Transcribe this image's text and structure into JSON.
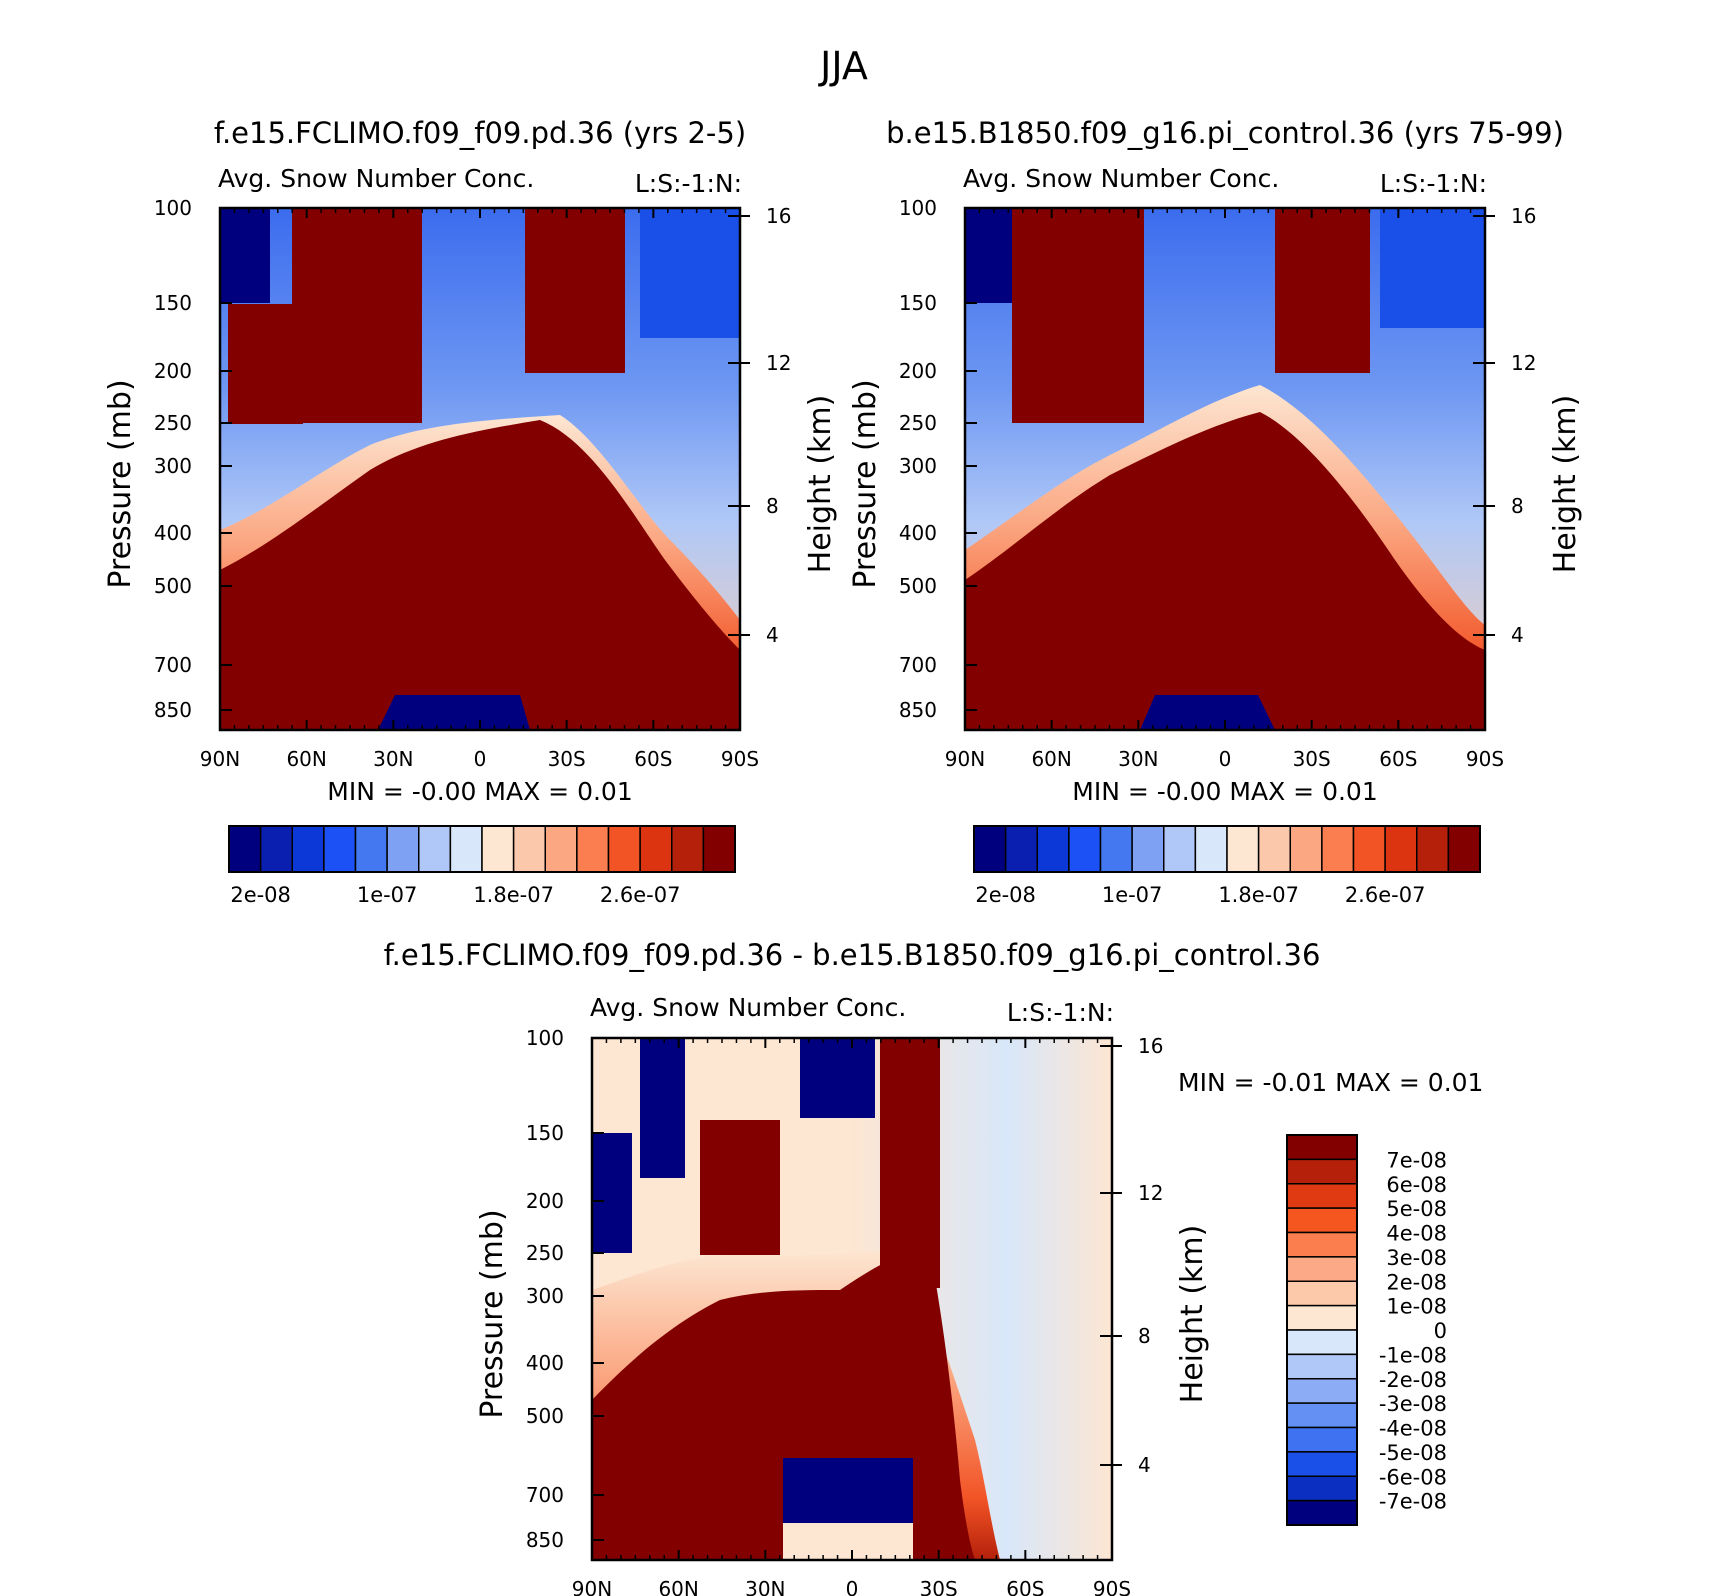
{
  "figure_title": "JJA",
  "chart_data": [
    {
      "type": "heatmap",
      "panel": "top-left",
      "title": "f.e15.FCLIMO.f09_f09.pd.36 (yrs 2-5)",
      "subtitle": "Avg. Snow Number Conc.",
      "units_label": "L:S:-1:N:",
      "xlabel": "",
      "ylabel": "Pressure (mb)",
      "y2label": "Height (km)",
      "x_ticks": [
        "90N",
        "60N",
        "30N",
        "0",
        "30S",
        "60S",
        "90S"
      ],
      "y_ticks": [
        "100",
        "150",
        "200",
        "250",
        "300",
        "400",
        "500",
        "700",
        "850"
      ],
      "y2_ticks": [
        "16",
        "12",
        "8",
        "4"
      ],
      "min_label": "MIN =",
      "min_value": "-0.00",
      "max_label": "MAX =",
      "max_value": "0.01",
      "colorbar": {
        "orientation": "horizontal",
        "tick_labels": [
          "2e-08",
          "1e-07",
          "1.8e-07",
          "2.6e-07"
        ],
        "colors": [
          "#00007f",
          "#0a1fb0",
          "#0b38d6",
          "#1c52f5",
          "#4378f0",
          "#7ea1f3",
          "#b0c8f7",
          "#d8e7f9",
          "#fde6d2",
          "#fcc8ab",
          "#fba782",
          "#fa7e4f",
          "#f25426",
          "#dc3410",
          "#b4200a",
          "#820000"
        ]
      }
    },
    {
      "type": "heatmap",
      "panel": "top-right",
      "title": "b.e15.B1850.f09_g16.pi_control.36 (yrs 75-99)",
      "subtitle": "Avg. Snow Number Conc.",
      "units_label": "L:S:-1:N:",
      "xlabel": "",
      "ylabel": "Pressure (mb)",
      "y2label": "Height (km)",
      "x_ticks": [
        "90N",
        "60N",
        "30N",
        "0",
        "30S",
        "60S",
        "90S"
      ],
      "y_ticks": [
        "100",
        "150",
        "200",
        "250",
        "300",
        "400",
        "500",
        "700",
        "850"
      ],
      "y2_ticks": [
        "16",
        "12",
        "8",
        "4"
      ],
      "min_label": "MIN =",
      "min_value": "-0.00",
      "max_label": "MAX =",
      "max_value": "0.01",
      "colorbar": {
        "orientation": "horizontal",
        "tick_labels": [
          "2e-08",
          "1e-07",
          "1.8e-07",
          "2.6e-07"
        ],
        "colors": [
          "#00007f",
          "#0a1fb0",
          "#0b38d6",
          "#1c52f5",
          "#4378f0",
          "#7ea1f3",
          "#b0c8f7",
          "#d8e7f9",
          "#fde6d2",
          "#fcc8ab",
          "#fba782",
          "#fa7e4f",
          "#f25426",
          "#dc3410",
          "#b4200a",
          "#820000"
        ]
      }
    },
    {
      "type": "heatmap",
      "panel": "bottom",
      "title": "f.e15.FCLIMO.f09_f09.pd.36 - b.e15.B1850.f09_g16.pi_control.36",
      "subtitle": "Avg. Snow Number Conc.",
      "units_label": "L:S:-1:N:",
      "xlabel": "",
      "ylabel": "Pressure (mb)",
      "y2label": "Height (km)",
      "x_ticks": [
        "90N",
        "60N",
        "30N",
        "0",
        "30S",
        "60S",
        "90S"
      ],
      "y_ticks": [
        "100",
        "150",
        "200",
        "250",
        "300",
        "400",
        "500",
        "700",
        "850"
      ],
      "y2_ticks": [
        "16",
        "12",
        "8",
        "4"
      ],
      "min_label": "MIN =",
      "min_value": "-0.01",
      "max_label": "MAX =",
      "max_value": "0.01",
      "colorbar": {
        "orientation": "vertical",
        "tick_labels": [
          "7e-08",
          "6e-08",
          "5e-08",
          "4e-08",
          "3e-08",
          "2e-08",
          "1e-08",
          "0",
          "-1e-08",
          "-2e-08",
          "-3e-08",
          "-4e-08",
          "-5e-08",
          "-6e-08",
          "-7e-08"
        ],
        "colors": [
          "#820000",
          "#b4200a",
          "#e03a12",
          "#f5561f",
          "#fb7e4e",
          "#fca987",
          "#fdc9ab",
          "#fde6d2",
          "#d8e7f9",
          "#b0c8f7",
          "#8cadf5",
          "#6590f3",
          "#3e72f0",
          "#1a4fe8",
          "#0b2fc0",
          "#00007f"
        ]
      }
    }
  ]
}
